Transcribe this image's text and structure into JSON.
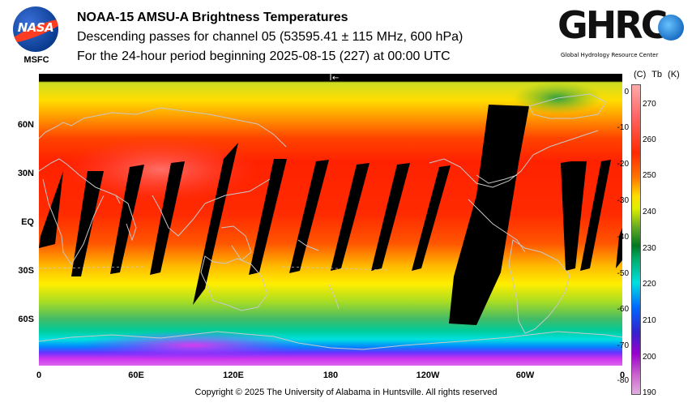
{
  "header": {
    "title": "NOAA-15 AMSU-A Brightness Temperatures",
    "subtitle": "Descending passes for channel 05 (53595.41 ± 115 MHz, 600 hPa)",
    "period": "For the 24-hour period beginning 2025-08-15 (227) at 00:00 UTC"
  },
  "logos": {
    "nasa_text": "NASA",
    "msfc_text": "MSFC",
    "ghrc_text": "GHRC",
    "ghrc_subtitle": "Global Hydrology Resource Center"
  },
  "map": {
    "lat_labels": [
      "60N",
      "30N",
      "EQ",
      "30S",
      "60S"
    ],
    "lon_labels": [
      "0",
      "60E",
      "120E",
      "180",
      "120W",
      "60W",
      "0"
    ],
    "marker_glyph": "←"
  },
  "colorbar": {
    "unit_c": "(C)",
    "var": "Tb",
    "unit_k": "(K)",
    "celsius_ticks": [
      "0",
      "-10",
      "-20",
      "-30",
      "-40",
      "-50",
      "-60",
      "-70",
      "-80"
    ],
    "kelvin_ticks": [
      "270",
      "260",
      "250",
      "240",
      "230",
      "220",
      "210",
      "200",
      "190"
    ]
  },
  "footer": {
    "copyright": "Copyright © 2025 The University of Alabama in Huntsville.  All rights reserved"
  },
  "colors": {
    "warm": "#ff2a00",
    "mid": "#ffdd00",
    "cool": "#00e0e0",
    "cold": "#9900cc",
    "gap": "#000000",
    "coast": "#c8c8c8"
  }
}
